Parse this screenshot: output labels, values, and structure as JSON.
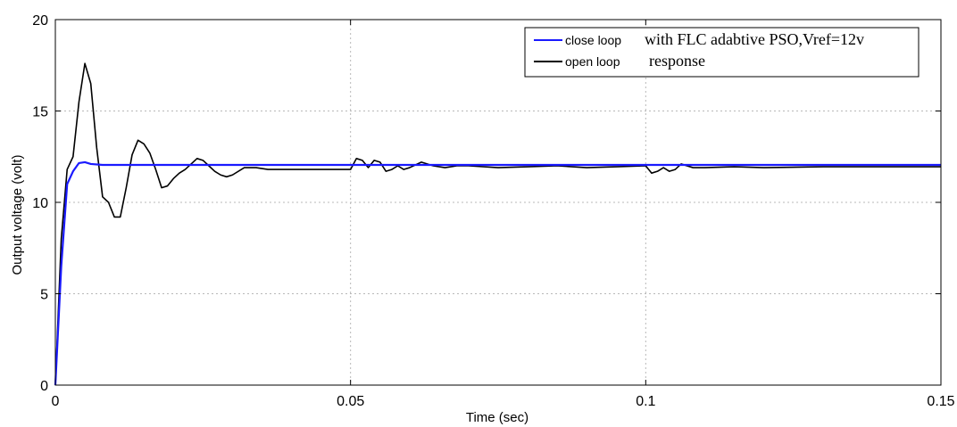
{
  "chart_data": {
    "type": "line",
    "xlabel": "Time (sec)",
    "ylabel": "Output voltage (volt)",
    "xlim": [
      0,
      0.15
    ],
    "ylim": [
      0,
      20
    ],
    "xticks": [
      0,
      0.05,
      0.1,
      0.15
    ],
    "yticks": [
      0,
      5,
      10,
      15,
      20
    ],
    "xtick_labels": [
      "0",
      "0.05",
      "0.1",
      "0.15"
    ],
    "ytick_labels": [
      "0",
      "5",
      "10",
      "15",
      "20"
    ],
    "grid": true,
    "legend_position": "top-right",
    "series": [
      {
        "name": "close loop",
        "legend_annotation": "with FLC adabtive PSO,Vref=12v",
        "color": "#1a1aff",
        "x": [
          0,
          0.001,
          0.002,
          0.003,
          0.004,
          0.005,
          0.006,
          0.008,
          0.01,
          0.02,
          0.05,
          0.1,
          0.15
        ],
        "y": [
          0,
          6.5,
          11.0,
          11.7,
          12.15,
          12.2,
          12.1,
          12.05,
          12.05,
          12.05,
          12.05,
          12.05,
          12.05
        ]
      },
      {
        "name": "open loop",
        "legend_annotation": "response",
        "color": "#000000",
        "x": [
          0,
          0.001,
          0.002,
          0.003,
          0.004,
          0.005,
          0.006,
          0.007,
          0.008,
          0.009,
          0.01,
          0.011,
          0.012,
          0.013,
          0.014,
          0.015,
          0.016,
          0.017,
          0.018,
          0.019,
          0.02,
          0.021,
          0.022,
          0.023,
          0.024,
          0.025,
          0.026,
          0.027,
          0.028,
          0.029,
          0.03,
          0.032,
          0.034,
          0.036,
          0.038,
          0.04,
          0.042,
          0.044,
          0.046,
          0.048,
          0.05,
          0.051,
          0.052,
          0.053,
          0.054,
          0.055,
          0.056,
          0.057,
          0.058,
          0.059,
          0.06,
          0.062,
          0.064,
          0.066,
          0.068,
          0.07,
          0.075,
          0.08,
          0.085,
          0.09,
          0.095,
          0.1,
          0.101,
          0.102,
          0.103,
          0.104,
          0.105,
          0.106,
          0.108,
          0.11,
          0.115,
          0.12,
          0.13,
          0.14,
          0.15
        ],
        "y": [
          0,
          8.0,
          11.8,
          12.5,
          15.5,
          17.6,
          16.5,
          13.0,
          10.3,
          10.0,
          9.2,
          9.2,
          10.8,
          12.6,
          13.4,
          13.2,
          12.7,
          11.8,
          10.8,
          10.9,
          11.3,
          11.6,
          11.8,
          12.1,
          12.4,
          12.3,
          12.0,
          11.7,
          11.5,
          11.4,
          11.5,
          11.9,
          11.9,
          11.8,
          11.8,
          11.8,
          11.8,
          11.8,
          11.8,
          11.8,
          11.8,
          12.4,
          12.3,
          11.9,
          12.3,
          12.2,
          11.7,
          11.8,
          12.0,
          11.8,
          11.9,
          12.2,
          12.0,
          11.9,
          12.0,
          12.0,
          11.9,
          11.95,
          12.0,
          11.9,
          11.95,
          12.0,
          11.6,
          11.7,
          11.9,
          11.7,
          11.8,
          12.1,
          11.9,
          11.9,
          11.95,
          11.9,
          11.95,
          11.95,
          11.95
        ]
      }
    ]
  }
}
